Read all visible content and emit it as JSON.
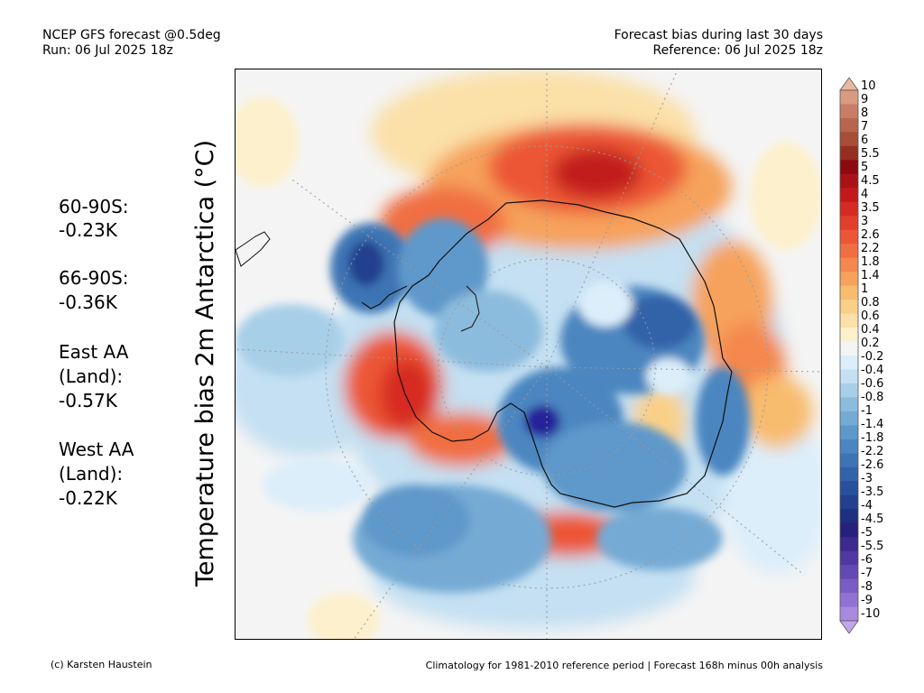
{
  "header": {
    "left_line1": "NCEP GFS forecast @0.5deg",
    "left_line2": "Run: 06 Jul 2025 18z",
    "right_line1": "Forecast bias during last 30 days",
    "right_line2": "Reference: 06 Jul 2025 18z"
  },
  "stats": [
    {
      "lines": [
        "60-90S:",
        " -0.23K"
      ]
    },
    {
      "lines": [
        "66-90S:",
        " -0.36K"
      ]
    },
    {
      "lines": [
        "East AA",
        " (Land):",
        " -0.57K"
      ]
    },
    {
      "lines": [
        "West AA",
        " (Land):",
        " -0.22K"
      ]
    }
  ],
  "y_axis_label": "Temperature bias 2m Antarctica (°C)",
  "colorbar": {
    "levels": [
      "10",
      "9",
      "8",
      "7",
      "6",
      "5.5",
      "5",
      "4.5",
      "4",
      "3.5",
      "3",
      "2.6",
      "2.2",
      "1.8",
      "1.4",
      "1",
      "0.8",
      "0.6",
      "0.4",
      "0.2",
      "-0.2",
      "-0.4",
      "-0.6",
      "-0.8",
      "-1",
      "-1.4",
      "-1.8",
      "-2.2",
      "-2.6",
      "-3",
      "-3.5",
      "-4",
      "-4.5",
      "-5",
      "-5.5",
      "-6",
      "-7",
      "-8",
      "-9",
      "-10"
    ],
    "colors": [
      "#e8b8a0",
      "#d89a80",
      "#c87d66",
      "#b8654e",
      "#a84d38",
      "#962e22",
      "#8b0a10",
      "#a81216",
      "#c21a1c",
      "#d62a24",
      "#e23e2c",
      "#ec5636",
      "#f06e42",
      "#f4884e",
      "#f6a25c",
      "#f8bc6e",
      "#fad088",
      "#fbe0a8",
      "#fdf0cc",
      "#f4f4f4",
      "#dceefa",
      "#c4e0f2",
      "#a8cfe8",
      "#8cbcdd",
      "#74aad4",
      "#5e98ca",
      "#4c86c0",
      "#3e74b4",
      "#3262a8",
      "#28509c",
      "#22408e",
      "#1e307e",
      "#28207a",
      "#3c2a8e",
      "#5038a2",
      "#6448b4",
      "#7a5cc4",
      "#9072d2",
      "#a88ade",
      "#c2a6ea"
    ]
  },
  "footer": {
    "left": "(c) Karsten Haustein",
    "right": "Climatology for 1981-2010 reference period | Forecast 168h minus 00h analysis"
  }
}
